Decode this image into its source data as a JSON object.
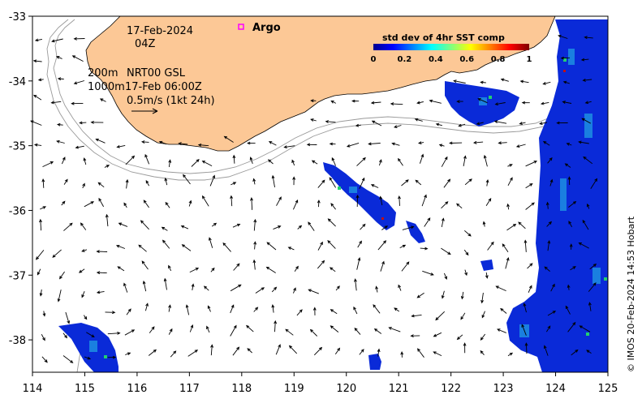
{
  "map": {
    "lon_ticks": [
      "114",
      "115",
      "116",
      "117",
      "118",
      "119",
      "120",
      "121",
      "122",
      "123",
      "124",
      "125"
    ],
    "lat_ticks": [
      "-33",
      "-34",
      "-35",
      "-36",
      "-37",
      "-38"
    ],
    "lon_range": [
      114,
      125
    ],
    "lat_range": [
      -38.5,
      -33
    ],
    "land_color": "#fcc896",
    "ocean_color": "#ffffff"
  },
  "annotations": {
    "date": "17-Feb-2024",
    "hour": "04Z",
    "line1_left": "200m",
    "line1_right": "NRT00 GSL",
    "line2_left": "1000m",
    "line2_right": "17-Feb 06:00Z",
    "scale": "0.5m/s (1kt 24h)"
  },
  "argo": {
    "label": "Argo",
    "color": "#ff00ff"
  },
  "colorbar": {
    "title": "std dev of 4hr SST comp",
    "ticks": [
      "0",
      "0.2",
      "0.4",
      "0.6",
      "0.8",
      "1"
    ],
    "colormap": [
      "#00008f",
      "#0000ff",
      "#0080ff",
      "#00ffff",
      "#80ff80",
      "#ffff00",
      "#ff8000",
      "#ff0000",
      "#800000"
    ]
  },
  "credit": "© IMOS 20-Feb-2024 14:53 Hobart"
}
